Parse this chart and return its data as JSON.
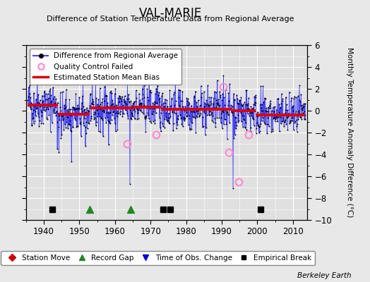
{
  "title": "VAL-MARIE",
  "subtitle": "Difference of Station Temperature Data from Regional Average",
  "ylabel": "Monthly Temperature Anomaly Difference (°C)",
  "xlim": [
    1935,
    2014
  ],
  "ylim": [
    -10,
    6
  ],
  "yticks": [
    -10,
    -8,
    -6,
    -4,
    -2,
    0,
    2,
    4,
    6
  ],
  "xticks": [
    1940,
    1950,
    1960,
    1970,
    1980,
    1990,
    2000,
    2010
  ],
  "bg_color": "#e8e8e8",
  "plot_bg_color": "#e0e0e0",
  "grid_color": "#ffffff",
  "data_color": "#4444ff",
  "data_marker_color": "#000000",
  "bias_color": "#dd0000",
  "qc_color": "#ff88cc",
  "random_seed": 42,
  "n_points": 900,
  "x_start": 1935.5,
  "x_end": 2013.5,
  "segments": [
    {
      "x_start": 1935.5,
      "x_end": 1944.0,
      "bias": 0.5
    },
    {
      "x_start": 1944.0,
      "x_end": 1953.0,
      "bias": -0.35
    },
    {
      "x_start": 1953.0,
      "x_end": 1965.0,
      "bias": 0.25
    },
    {
      "x_start": 1965.0,
      "x_end": 1973.0,
      "bias": 0.35
    },
    {
      "x_start": 1973.0,
      "x_end": 1993.0,
      "bias": 0.15
    },
    {
      "x_start": 1993.0,
      "x_end": 1999.5,
      "bias": 0.0
    },
    {
      "x_start": 1999.5,
      "x_end": 2013.5,
      "bias": -0.4
    }
  ],
  "record_gaps": [
    1953.0,
    1964.5
  ],
  "empirical_breaks": [
    1942.5,
    1973.5,
    1975.5,
    2001.0
  ],
  "obs_changes": [],
  "station_moves": [],
  "qc_failed_approx": [
    [
      1963.5,
      -3.0
    ],
    [
      1971.5,
      -2.2
    ],
    [
      1990.5,
      2.2
    ],
    [
      1992.0,
      -3.8
    ],
    [
      1994.8,
      -6.5
    ],
    [
      1997.5,
      -2.2
    ]
  ],
  "watermark": "Berkeley Earth"
}
